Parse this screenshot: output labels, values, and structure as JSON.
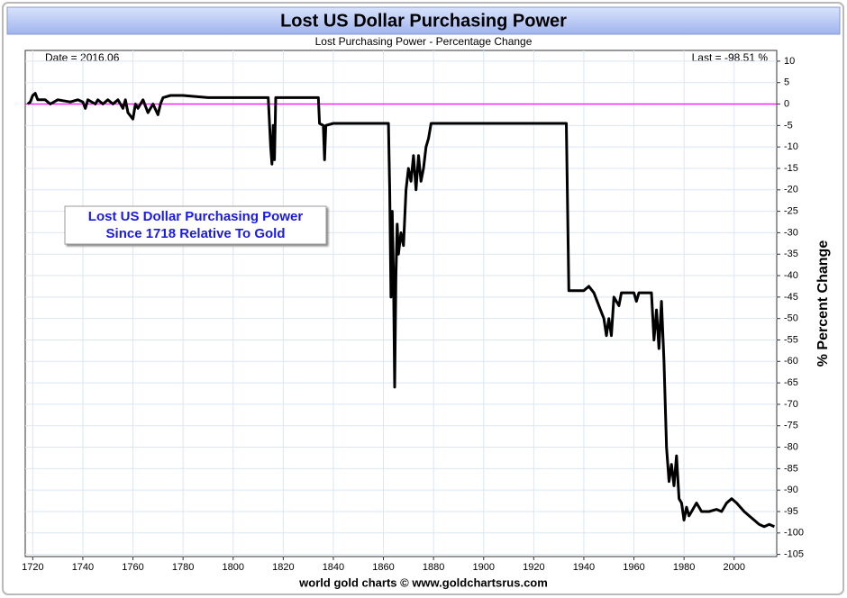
{
  "chart_data": {
    "type": "line",
    "title": "Lost US Dollar Purchasing Power",
    "subtitle": "Lost Purchasing Power - Percentage Change",
    "y_label": "% Percent Change",
    "footer": "world gold charts © www.goldchartsrus.com",
    "annotations": {
      "date": "Date = 2016.06",
      "last": "Last = -98.51 %",
      "box": [
        "Lost US Dollar Purchasing Power",
        "Since 1718 Relative To Gold"
      ]
    },
    "x": [
      1718,
      1719,
      1720,
      1721,
      1722,
      1725,
      1727,
      1730,
      1735,
      1738,
      1740,
      1741,
      1742,
      1745,
      1746,
      1748,
      1750,
      1752,
      1754,
      1756,
      1757,
      1758,
      1760,
      1761,
      1762,
      1764,
      1766,
      1768,
      1770,
      1771,
      1772,
      1775,
      1780,
      1790,
      1800,
      1814,
      1815,
      1815.5,
      1816,
      1816.5,
      1817,
      1834,
      1834.5,
      1836,
      1836.5,
      1837,
      1840,
      1862,
      1862.5,
      1863,
      1863.5,
      1864,
      1864.5,
      1865,
      1865.5,
      1866,
      1867,
      1868,
      1869,
      1870,
      1871,
      1872,
      1873,
      1874,
      1875,
      1876,
      1877,
      1878,
      1879,
      1933,
      1934,
      1940,
      1942,
      1944,
      1946,
      1948,
      1949,
      1950,
      1951,
      1952,
      1954,
      1955,
      1960,
      1961,
      1962,
      1967,
      1968,
      1969,
      1970,
      1971,
      1972,
      1973,
      1974,
      1975,
      1976,
      1977,
      1978,
      1979,
      1980,
      1981,
      1982,
      1983,
      1985,
      1987,
      1990,
      1993,
      1995,
      1997,
      1999,
      2001,
      2004,
      2006,
      2008,
      2010,
      2012,
      2014,
      2016.06
    ],
    "series": [
      {
        "color": "#000000",
        "values": [
          0,
          0.5,
          2,
          2.5,
          1,
          1,
          0,
          1,
          0.5,
          1,
          0.5,
          -1,
          1,
          0,
          1,
          0,
          1,
          0,
          1,
          -1,
          1,
          -2,
          -3.5,
          0,
          -1,
          1,
          -2,
          0,
          -2.5,
          0,
          1.5,
          2,
          2,
          1.5,
          1.5,
          1.5,
          -10,
          -14,
          -5,
          -13,
          1.5,
          1.5,
          -4.5,
          -5,
          -13,
          -5,
          -4.5,
          -4.5,
          -20,
          -45,
          -25,
          -40,
          -66,
          -40,
          -28,
          -35,
          -30,
          -33,
          -20,
          -15,
          -18,
          -12,
          -20,
          -12,
          -18,
          -15,
          -10,
          -8,
          -4.5,
          -4.5,
          -43.5,
          -43.5,
          -42.5,
          -44,
          -47,
          -50,
          -54,
          -50,
          -54,
          -45,
          -47,
          -44,
          -44,
          -46,
          -44,
          -44,
          -55,
          -48,
          -57,
          -46,
          -60,
          -80,
          -88,
          -84,
          -89,
          -82,
          -92,
          -93,
          -97,
          -94,
          -96,
          -95,
          -93,
          -95,
          -95,
          -94.5,
          -95,
          -93,
          -92,
          -93,
          -95,
          -96,
          -97,
          -98,
          -98.5,
          -98,
          -98.51
        ]
      }
    ],
    "xlim": [
      1717,
      2017
    ],
    "xticks": [
      1720,
      1740,
      1760,
      1780,
      1800,
      1820,
      1840,
      1860,
      1880,
      1900,
      1920,
      1940,
      1960,
      1980,
      2000
    ],
    "ylim": [
      -105.5,
      12.5
    ],
    "yticks": [
      10,
      5,
      0,
      -5,
      -10,
      -15,
      -20,
      -25,
      -30,
      -35,
      -40,
      -45,
      -50,
      -55,
      -60,
      -65,
      -70,
      -75,
      -80,
      -85,
      -90,
      -95,
      -100,
      -105
    ],
    "yaxis_side": "right",
    "grid": true,
    "reference_line": {
      "value": 0,
      "color": "#ff00ff"
    }
  }
}
